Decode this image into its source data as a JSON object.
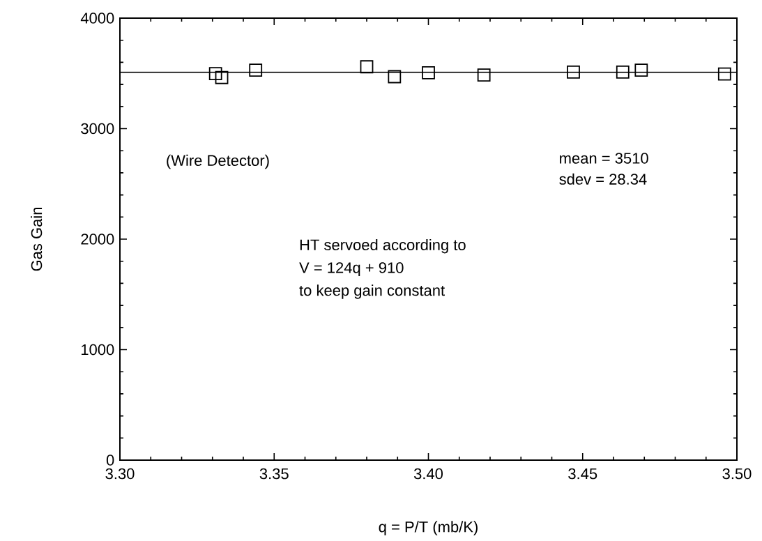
{
  "chart_data": {
    "type": "scatter",
    "xlabel": "q = P/T  (mb/K)",
    "ylabel": "Gas Gain",
    "x": [
      3.331,
      3.333,
      3.344,
      3.38,
      3.389,
      3.4,
      3.418,
      3.447,
      3.463,
      3.469,
      3.496
    ],
    "series": [
      {
        "color": "#000000",
        "values": [
          3497,
          3462,
          3529,
          3560,
          3470,
          3506,
          3485,
          3512,
          3512,
          3529,
          3495
        ]
      }
    ],
    "xlim": [
      3.3,
      3.5
    ],
    "xticks": [
      {
        "value": 3.3,
        "label": "3.30"
      },
      {
        "value": 3.35,
        "label": "3.35"
      },
      {
        "value": 3.4,
        "label": "3.40"
      },
      {
        "value": 3.45,
        "label": "3.45"
      },
      {
        "value": 3.5,
        "label": "3.50"
      }
    ],
    "ylim": [
      0,
      4000
    ],
    "yticks": [
      0,
      1000,
      2000,
      3000,
      4000
    ],
    "ref_lines": [
      {
        "axis": "y",
        "value": 3510,
        "label": null,
        "color": "#000000"
      }
    ],
    "annotations": [
      "(Wire Detector)",
      "mean = 3510",
      "sdev = 28.34",
      "HT servoed according to",
      "V = 124q + 910",
      "to keep gain constant"
    ],
    "marker": "square"
  }
}
